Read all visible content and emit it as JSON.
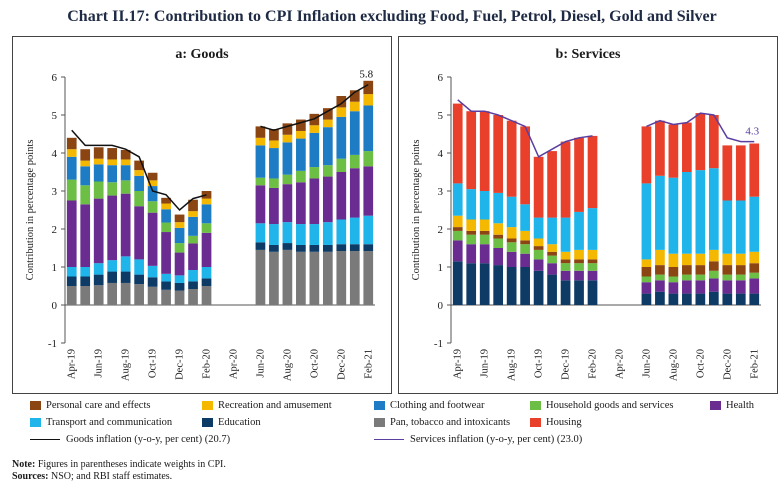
{
  "title": "Chart II.17: Contribution to CPI Inflation excluding Food, Fuel, Petrol, Diesel, Gold and Silver",
  "legend": [
    {
      "key": "personal",
      "label": "Personal care and effects",
      "color": "#8B4513",
      "kind": "bar"
    },
    {
      "key": "recreation",
      "label": "Recreation and amusement",
      "color": "#F5B800",
      "kind": "bar"
    },
    {
      "key": "clothing",
      "label": "Clothing and footwear",
      "color": "#1E7CC4",
      "kind": "bar"
    },
    {
      "key": "household",
      "label": "Household goods and services",
      "color": "#6DBE45",
      "kind": "bar"
    },
    {
      "key": "health",
      "label": "Health",
      "color": "#6A2C91",
      "kind": "bar"
    },
    {
      "key": "transport",
      "label": "Transport and communication",
      "color": "#1FB5EA",
      "kind": "bar"
    },
    {
      "key": "education",
      "label": "Education",
      "color": "#0D3B66",
      "kind": "bar"
    },
    {
      "key": "pan",
      "label": "Pan, tobacco and intoxicants",
      "color": "#7A7A7A",
      "kind": "bar"
    },
    {
      "key": "housing",
      "label": "Housing",
      "color": "#E8402A",
      "kind": "bar"
    },
    {
      "key": "goods_line",
      "label": "Goods inflation (y-o-y, per cent) (20.7)",
      "color": "#111111",
      "kind": "line"
    },
    {
      "key": "services_line",
      "label": "Services inflation (y-o-y, per cent) (23.0)",
      "color": "#5B3FA0",
      "kind": "line"
    }
  ],
  "note_label": "Note:",
  "note_text": "Figures in parentheses indicate weights in CPI.",
  "sources_label": "Sources:",
  "sources_text": "NSO; and RBI staff estimates.",
  "chart_data": [
    {
      "type": "bar",
      "panel": "goods",
      "title": "a: Goods",
      "ylabel": "Contribution in percentage points",
      "ylim": [
        -1,
        6
      ],
      "yticks": [
        -1,
        0,
        1,
        2,
        3,
        4,
        5,
        6
      ],
      "categories": [
        "Apr-19",
        "May-19",
        "Jun-19",
        "Jul-19",
        "Aug-19",
        "Sep-19",
        "Oct-19",
        "Nov-19",
        "Dec-19",
        "Jan-20",
        "Feb-20",
        "Mar-20",
        "Apr-20",
        "May-20",
        "Jun-20",
        "Jul-20",
        "Aug-20",
        "Sep-20",
        "Oct-20",
        "Nov-20",
        "Dec-20",
        "Jan-21",
        "Feb-21"
      ],
      "tick_labels": [
        "Apr-19",
        "",
        "Jun-19",
        "",
        "Aug-19",
        "",
        "Oct-19",
        "",
        "Dec-19",
        "",
        "Feb-20",
        "",
        "Apr-20",
        "",
        "Jun-20",
        "",
        "Aug-20",
        "",
        "Oct-20",
        "",
        "Dec-20",
        "",
        "Feb-21"
      ],
      "series": [
        {
          "name": "Pan, tobacco and intoxicants",
          "key": "pan",
          "values": [
            0.5,
            0.5,
            0.52,
            0.58,
            0.58,
            0.55,
            0.48,
            0.4,
            0.38,
            0.42,
            0.5,
            null,
            null,
            null,
            1.45,
            1.4,
            1.45,
            1.4,
            1.4,
            1.4,
            1.42,
            1.42,
            1.42
          ]
        },
        {
          "name": "Education",
          "key": "education",
          "values": [
            0.25,
            0.25,
            0.28,
            0.3,
            0.3,
            0.25,
            0.25,
            0.22,
            0.2,
            0.2,
            0.2,
            null,
            null,
            null,
            0.2,
            0.18,
            0.18,
            0.18,
            0.18,
            0.18,
            0.18,
            0.18,
            0.18
          ]
        },
        {
          "name": "Transport and communication",
          "key": "transport",
          "values": [
            0.25,
            0.25,
            0.3,
            0.3,
            0.4,
            0.4,
            0.3,
            0.2,
            0.2,
            0.3,
            0.3,
            null,
            null,
            null,
            0.5,
            0.55,
            0.55,
            0.55,
            0.55,
            0.6,
            0.65,
            0.7,
            0.75
          ]
        },
        {
          "name": "Health",
          "key": "health",
          "values": [
            1.75,
            1.65,
            1.7,
            1.7,
            1.65,
            1.4,
            1.4,
            1.1,
            0.6,
            0.7,
            0.9,
            null,
            null,
            null,
            1.0,
            0.95,
            1.0,
            1.1,
            1.2,
            1.2,
            1.25,
            1.3,
            1.3
          ]
        },
        {
          "name": "Household goods and services",
          "key": "household",
          "values": [
            0.55,
            0.5,
            0.45,
            0.35,
            0.35,
            0.4,
            0.3,
            0.25,
            0.25,
            0.2,
            0.25,
            null,
            null,
            null,
            0.2,
            0.25,
            0.25,
            0.3,
            0.3,
            0.3,
            0.35,
            0.35,
            0.4
          ]
        },
        {
          "name": "Clothing and footwear",
          "key": "clothing",
          "values": [
            0.6,
            0.5,
            0.45,
            0.45,
            0.4,
            0.4,
            0.4,
            0.35,
            0.4,
            0.5,
            0.5,
            null,
            null,
            null,
            0.85,
            0.8,
            0.85,
            0.85,
            0.9,
            1.0,
            1.1,
            1.15,
            1.2
          ]
        },
        {
          "name": "Recreation and amusement",
          "key": "recreation",
          "values": [
            0.2,
            0.15,
            0.15,
            0.15,
            0.15,
            0.15,
            0.15,
            0.15,
            0.15,
            0.15,
            0.15,
            null,
            null,
            null,
            0.2,
            0.2,
            0.2,
            0.2,
            0.2,
            0.2,
            0.25,
            0.25,
            0.3
          ]
        },
        {
          "name": "Personal care and effects",
          "key": "personal",
          "values": [
            0.3,
            0.3,
            0.3,
            0.3,
            0.25,
            0.25,
            0.2,
            0.15,
            0.2,
            0.3,
            0.2,
            null,
            null,
            null,
            0.3,
            0.3,
            0.3,
            0.3,
            0.3,
            0.3,
            0.3,
            0.3,
            0.35
          ]
        }
      ],
      "line": {
        "name": "Goods inflation (y-o-y, per cent) (20.7)",
        "key": "goods_line",
        "values": [
          4.6,
          4.2,
          4.2,
          4.2,
          4.1,
          3.9,
          3.0,
          2.9,
          2.5,
          2.8,
          2.9,
          null,
          null,
          null,
          4.7,
          4.6,
          4.7,
          4.8,
          4.9,
          5.1,
          5.3,
          5.6,
          5.8
        ]
      },
      "annotation": {
        "text": "5.8",
        "at": "Feb-21"
      }
    },
    {
      "type": "bar",
      "panel": "services",
      "title": "b: Services",
      "ylabel": "Contribution in percentage points",
      "ylim": [
        -1,
        6
      ],
      "yticks": [
        -1,
        0,
        1,
        2,
        3,
        4,
        5,
        6
      ],
      "categories": [
        "Apr-19",
        "May-19",
        "Jun-19",
        "Jul-19",
        "Aug-19",
        "Sep-19",
        "Oct-19",
        "Nov-19",
        "Dec-19",
        "Jan-20",
        "Feb-20",
        "Mar-20",
        "Apr-20",
        "May-20",
        "Jun-20",
        "Jul-20",
        "Aug-20",
        "Sep-20",
        "Oct-20",
        "Nov-20",
        "Dec-20",
        "Jan-21",
        "Feb-21"
      ],
      "tick_labels": [
        "Apr-19",
        "",
        "Jun-19",
        "",
        "Aug-19",
        "",
        "Oct-19",
        "",
        "Dec-19",
        "",
        "Feb-20",
        "",
        "Apr-20",
        "",
        "Jun-20",
        "",
        "Aug-20",
        "",
        "Oct-20",
        "",
        "Dec-20",
        "",
        "Feb-21"
      ],
      "series": [
        {
          "name": "Education",
          "key": "education",
          "values": [
            1.15,
            1.1,
            1.1,
            1.05,
            1.0,
            1.0,
            0.9,
            0.8,
            0.65,
            0.65,
            0.65,
            null,
            null,
            null,
            0.3,
            0.35,
            0.3,
            0.3,
            0.3,
            0.35,
            0.3,
            0.3,
            0.3
          ]
        },
        {
          "name": "Health",
          "key": "health",
          "values": [
            0.55,
            0.5,
            0.5,
            0.45,
            0.4,
            0.35,
            0.3,
            0.3,
            0.25,
            0.25,
            0.25,
            null,
            null,
            null,
            0.3,
            0.3,
            0.3,
            0.35,
            0.35,
            0.35,
            0.35,
            0.35,
            0.4
          ]
        },
        {
          "name": "Household goods and services",
          "key": "household",
          "values": [
            0.25,
            0.25,
            0.25,
            0.25,
            0.25,
            0.25,
            0.25,
            0.2,
            0.2,
            0.2,
            0.2,
            null,
            null,
            null,
            0.15,
            0.15,
            0.15,
            0.15,
            0.15,
            0.2,
            0.15,
            0.15,
            0.15
          ]
        },
        {
          "name": "Personal care and effects",
          "key": "personal",
          "values": [
            0.1,
            0.1,
            0.1,
            0.1,
            0.1,
            0.1,
            0.1,
            0.1,
            0.1,
            0.1,
            0.1,
            null,
            null,
            null,
            0.25,
            0.25,
            0.25,
            0.25,
            0.25,
            0.25,
            0.25,
            0.25,
            0.25
          ]
        },
        {
          "name": "Recreation and amusement",
          "key": "recreation",
          "values": [
            0.3,
            0.3,
            0.3,
            0.3,
            0.3,
            0.25,
            0.2,
            0.2,
            0.2,
            0.25,
            0.25,
            null,
            null,
            null,
            0.2,
            0.4,
            0.35,
            0.3,
            0.3,
            0.3,
            0.3,
            0.3,
            0.3
          ]
        },
        {
          "name": "Transport and communication",
          "key": "transport",
          "values": [
            0.85,
            0.8,
            0.75,
            0.8,
            0.8,
            0.7,
            0.55,
            0.7,
            0.9,
            1.0,
            1.1,
            null,
            null,
            null,
            2.0,
            1.95,
            2.0,
            2.15,
            2.2,
            2.15,
            1.4,
            1.4,
            1.45
          ]
        },
        {
          "name": "Housing",
          "key": "housing",
          "values": [
            2.1,
            2.05,
            2.1,
            2.05,
            2.0,
            2.05,
            1.6,
            1.75,
            2.0,
            1.95,
            1.9,
            null,
            null,
            null,
            1.5,
            1.45,
            1.4,
            1.3,
            1.5,
            1.4,
            1.45,
            1.45,
            1.4
          ]
        }
      ],
      "line": {
        "name": "Services inflation (y-o-y, per cent) (23.0)",
        "key": "services_line",
        "values": [
          5.4,
          5.1,
          5.1,
          5.0,
          4.85,
          4.7,
          3.9,
          4.1,
          4.3,
          4.4,
          4.45,
          null,
          null,
          null,
          4.7,
          4.85,
          4.75,
          4.8,
          5.05,
          5.0,
          4.4,
          4.3,
          4.3
        ]
      },
      "annotation": {
        "text": "4.3",
        "at": "Feb-21"
      }
    }
  ]
}
